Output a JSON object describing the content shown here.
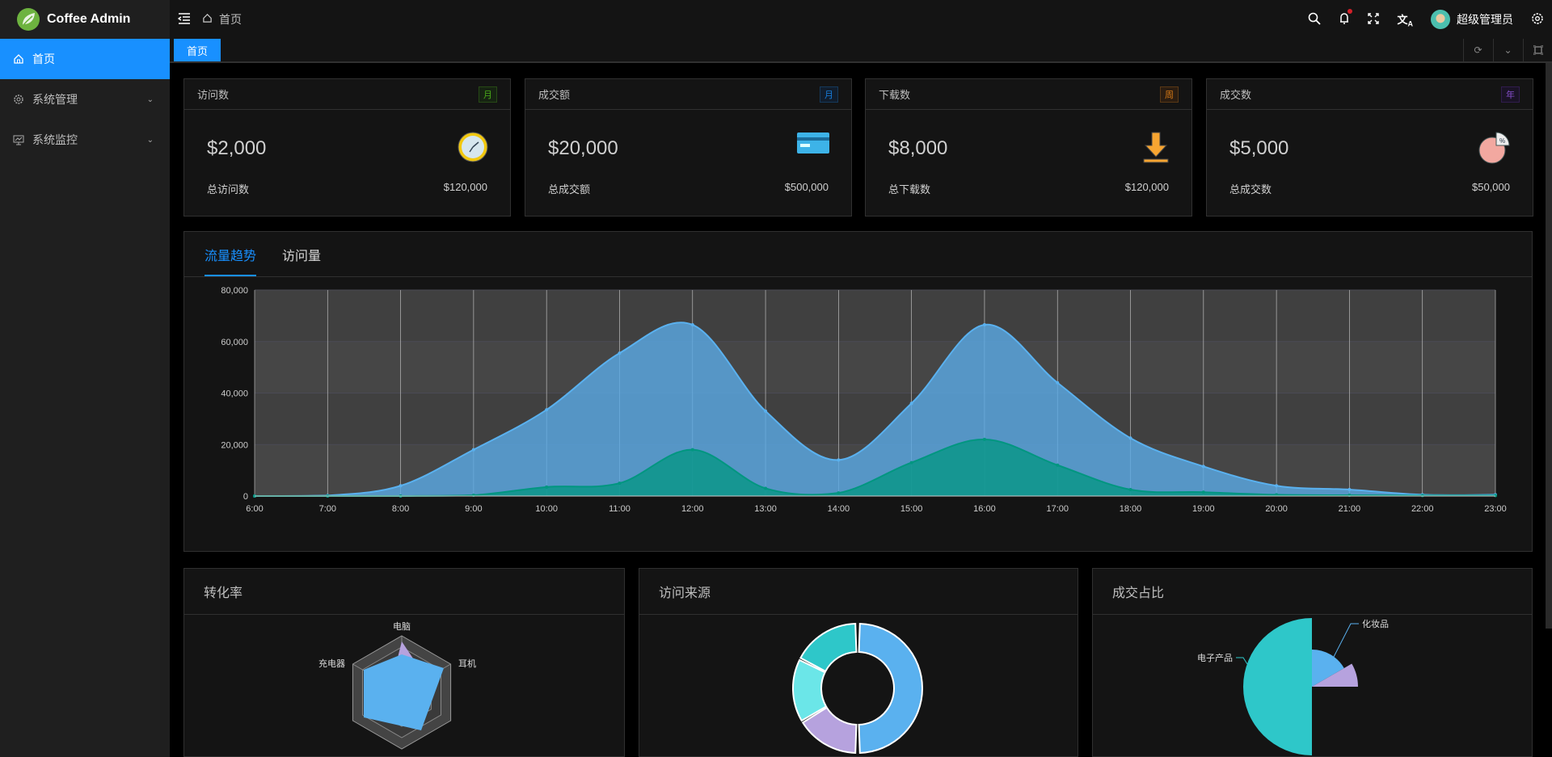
{
  "app": {
    "title": "Coffee Admin"
  },
  "sidebar": {
    "items": [
      {
        "label": "首页",
        "icon": "home-icon",
        "active": true
      },
      {
        "label": "系统管理",
        "icon": "gear-icon"
      },
      {
        "label": "系统监控",
        "icon": "monitor-icon"
      }
    ]
  },
  "header": {
    "breadcrumb": "首页",
    "user": "超级管理员",
    "notification_dot": true
  },
  "tabs": {
    "items": [
      "首页"
    ]
  },
  "stats": [
    {
      "title": "访问数",
      "tag": "月",
      "tag_color": "#49aa19",
      "value": "$2,000",
      "foot_label": "总访问数",
      "foot_value": "$120,000",
      "icon": "clock-icon"
    },
    {
      "title": "成交额",
      "tag": "月",
      "tag_color": "#177ddc",
      "value": "$20,000",
      "foot_label": "总成交额",
      "foot_value": "$500,000",
      "icon": "credit-card-icon"
    },
    {
      "title": "下载数",
      "tag": "周",
      "tag_color": "#d87a16",
      "value": "$8,000",
      "foot_label": "总下载数",
      "foot_value": "$120,000",
      "icon": "download-icon"
    },
    {
      "title": "成交数",
      "tag": "年",
      "tag_color": "#854eca",
      "value": "$5,000",
      "foot_label": "总成交数",
      "foot_value": "$50,000",
      "icon": "pie-chart-icon"
    }
  ],
  "chart_tabs": [
    "流量趋势",
    "访问量"
  ],
  "chart_data": {
    "type": "area",
    "x": [
      "6:00",
      "7:00",
      "8:00",
      "9:00",
      "10:00",
      "11:00",
      "12:00",
      "13:00",
      "14:00",
      "15:00",
      "16:00",
      "17:00",
      "18:00",
      "19:00",
      "20:00",
      "21:00",
      "22:00",
      "23:00"
    ],
    "series": [
      {
        "values": [
          0,
          200,
          4000,
          18000,
          33500,
          55500,
          66500,
          33000,
          14000,
          36000,
          66500,
          44000,
          22500,
          11500,
          4000,
          2500,
          500,
          500
        ],
        "color": "#5ab1ef"
      },
      {
        "values": [
          0,
          0,
          0,
          300,
          3500,
          5000,
          18000,
          3000,
          1200,
          13000,
          22000,
          12000,
          2500,
          1500,
          500,
          300,
          200,
          200
        ],
        "color": "#019680"
      }
    ],
    "yticks": [
      "0",
      "20,000",
      "40,000",
      "60,000",
      "80,000"
    ],
    "ylim": [
      0,
      80000
    ],
    "grid": true
  },
  "panels": [
    {
      "title": "转化率",
      "labels": [
        "电脑",
        "耳机",
        "充电器"
      ]
    },
    {
      "title": "访问来源"
    },
    {
      "title": "成交占比",
      "labels": [
        "化妆品",
        "电子产品"
      ]
    }
  ]
}
